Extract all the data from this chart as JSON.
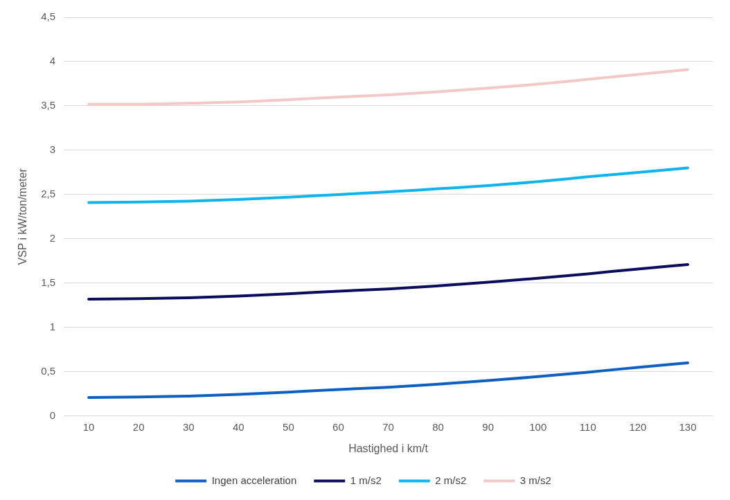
{
  "chart_data": {
    "type": "line",
    "xlabel": "Hastighed i km/t",
    "ylabel": "VSP i kW/ton/meter",
    "categories": [
      "10",
      "20",
      "30",
      "40",
      "50",
      "60",
      "70",
      "80",
      "90",
      "100",
      "110",
      "120",
      "130"
    ],
    "series": [
      {
        "name": "Ingen acceleration",
        "color": "#0f5fc0",
        "values": [
          0.21,
          0.215,
          0.225,
          0.245,
          0.27,
          0.3,
          0.325,
          0.36,
          0.4,
          0.445,
          0.495,
          0.55,
          0.6
        ]
      },
      {
        "name": "1 m/s2",
        "color": "#0c0c5c",
        "values": [
          1.32,
          1.325,
          1.335,
          1.355,
          1.38,
          1.41,
          1.435,
          1.47,
          1.51,
          1.555,
          1.605,
          1.66,
          1.71
        ]
      },
      {
        "name": "2 m/s2",
        "color": "#10b4ec",
        "values": [
          2.41,
          2.415,
          2.425,
          2.445,
          2.47,
          2.5,
          2.53,
          2.565,
          2.6,
          2.645,
          2.7,
          2.75,
          2.8
        ]
      },
      {
        "name": "3 m/s2",
        "color": "#f2c9c6",
        "values": [
          3.52,
          3.52,
          3.53,
          3.545,
          3.57,
          3.6,
          3.625,
          3.66,
          3.7,
          3.745,
          3.8,
          3.855,
          3.91
        ]
      }
    ],
    "ylim": [
      0,
      4.5
    ],
    "yticks": [
      0,
      {
        "value": 0.5,
        "label": "0,5"
      },
      1,
      {
        "value": 1.5,
        "label": "1,5"
      },
      2,
      {
        "value": 2.5,
        "label": "2,5"
      },
      3,
      {
        "value": 3.5,
        "label": "3,5"
      },
      4,
      {
        "value": 4.5,
        "label": "4,5"
      }
    ],
    "grid": "y",
    "legend": "bottom",
    "marker": "none",
    "line_style": "solid"
  }
}
